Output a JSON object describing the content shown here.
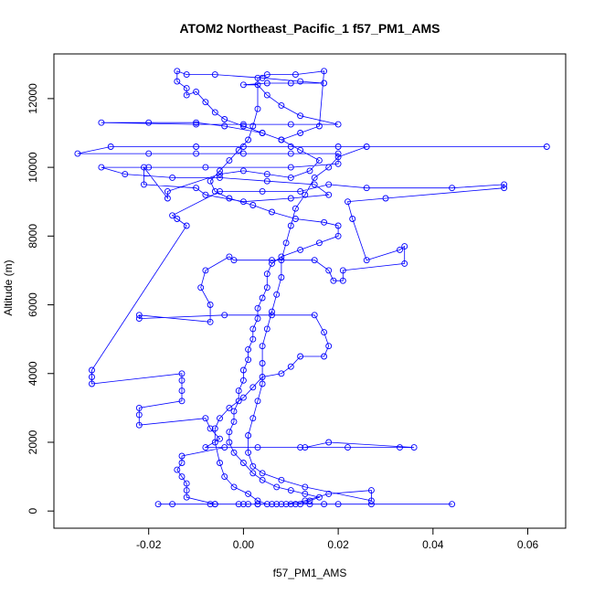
{
  "chart_data": {
    "type": "scatter",
    "title": "ATOM2 Northeast_Pacific_1 f57_PM1_AMS",
    "xlabel": "f57_PM1_AMS",
    "ylabel": "Altitude (m)",
    "xlim": [
      -0.04,
      0.068
    ],
    "ylim": [
      -500,
      13300
    ],
    "xticks": [
      -0.02,
      0.0,
      0.02,
      0.04,
      0.06
    ],
    "xtick_labels": [
      "-0.02",
      "0.00",
      "0.02",
      "0.04",
      "0.06"
    ],
    "yticks": [
      0,
      2000,
      4000,
      6000,
      8000,
      10000,
      12000
    ],
    "ytick_labels": [
      "0",
      "2000",
      "4000",
      "6000",
      "8000",
      "10000",
      "12000"
    ],
    "grid": false,
    "series_color": "#0000ff",
    "marker": "open-circle",
    "connected": true,
    "points": [
      [
        0.012,
        200
      ],
      [
        0.006,
        200
      ],
      [
        -0.001,
        200
      ],
      [
        -0.007,
        200
      ],
      [
        -0.015,
        200
      ],
      [
        -0.018,
        200
      ],
      [
        0.003,
        200
      ],
      [
        0.01,
        200
      ],
      [
        0.017,
        200
      ],
      [
        0.02,
        200
      ],
      [
        0.027,
        200
      ],
      [
        0.044,
        200
      ],
      [
        0.014,
        200
      ],
      [
        0.008,
        200
      ],
      [
        0.001,
        200
      ],
      [
        -0.006,
        200
      ],
      [
        -0.012,
        400
      ],
      [
        -0.012,
        600
      ],
      [
        -0.012,
        800
      ],
      [
        -0.013,
        1000
      ],
      [
        -0.014,
        1200
      ],
      [
        -0.013,
        1400
      ],
      [
        -0.013,
        1600
      ],
      [
        -0.004,
        1850
      ],
      [
        0.012,
        1850
      ],
      [
        0.022,
        1850
      ],
      [
        0.033,
        1850
      ],
      [
        0.036,
        1850
      ],
      [
        0.018,
        2000
      ],
      [
        0.013,
        1850
      ],
      [
        0.003,
        1850
      ],
      [
        -0.008,
        1850
      ],
      [
        -0.005,
        2100
      ],
      [
        -0.007,
        2400
      ],
      [
        -0.008,
        2700
      ],
      [
        -0.022,
        2500
      ],
      [
        -0.022,
        2800
      ],
      [
        -0.022,
        3000
      ],
      [
        -0.013,
        3200
      ],
      [
        -0.013,
        3500
      ],
      [
        -0.013,
        3800
      ],
      [
        -0.013,
        4000
      ],
      [
        -0.032,
        3700
      ],
      [
        -0.032,
        3900
      ],
      [
        -0.032,
        4100
      ],
      [
        -0.012,
        8300
      ],
      [
        -0.014,
        8500
      ],
      [
        -0.015,
        8600
      ],
      [
        -0.005,
        9300
      ],
      [
        0.004,
        9300
      ],
      [
        0.012,
        9300
      ],
      [
        0.018,
        9500
      ],
      [
        0.026,
        9400
      ],
      [
        0.044,
        9400
      ],
      [
        0.055,
        9500
      ],
      [
        0.055,
        9400
      ],
      [
        0.03,
        9100
      ],
      [
        0.022,
        9000
      ],
      [
        0.023,
        8500
      ],
      [
        0.026,
        7300
      ],
      [
        0.033,
        7600
      ],
      [
        0.034,
        7700
      ],
      [
        0.034,
        7200
      ],
      [
        0.021,
        7000
      ],
      [
        0.021,
        6700
      ],
      [
        0.019,
        6700
      ],
      [
        0.018,
        7000
      ],
      [
        0.015,
        7300
      ],
      [
        0.006,
        7300
      ],
      [
        -0.002,
        7300
      ],
      [
        -0.003,
        7400
      ],
      [
        -0.008,
        7000
      ],
      [
        -0.009,
        6500
      ],
      [
        -0.007,
        6000
      ],
      [
        -0.007,
        5500
      ],
      [
        -0.022,
        5700
      ],
      [
        -0.022,
        5600
      ],
      [
        -0.004,
        5700
      ],
      [
        0.006,
        5700
      ],
      [
        0.015,
        5700
      ],
      [
        0.017,
        5200
      ],
      [
        0.018,
        4800
      ],
      [
        0.017,
        4500
      ],
      [
        0.012,
        4500
      ],
      [
        0.01,
        4200
      ],
      [
        0.008,
        4000
      ],
      [
        0.004,
        3900
      ],
      [
        0.002,
        3600
      ],
      [
        0.0,
        3300
      ],
      [
        -0.003,
        3000
      ],
      [
        -0.005,
        2700
      ],
      [
        -0.006,
        2400
      ],
      [
        -0.006,
        2000
      ],
      [
        -0.005,
        1400
      ],
      [
        -0.004,
        1000
      ],
      [
        -0.002,
        700
      ],
      [
        0.001,
        500
      ],
      [
        0.003,
        300
      ],
      [
        0.005,
        200
      ],
      [
        0.009,
        200
      ],
      [
        0.013,
        300
      ],
      [
        0.018,
        500
      ],
      [
        0.027,
        600
      ],
      [
        0.027,
        300
      ],
      [
        0.013,
        700
      ],
      [
        0.008,
        900
      ],
      [
        0.004,
        1100
      ],
      [
        0.002,
        1300
      ],
      [
        0.001,
        1700
      ],
      [
        0.001,
        2200
      ],
      [
        0.002,
        2700
      ],
      [
        0.003,
        3200
      ],
      [
        0.004,
        3700
      ],
      [
        0.004,
        4300
      ],
      [
        0.004,
        4800
      ],
      [
        0.005,
        5300
      ],
      [
        0.006,
        5800
      ],
      [
        0.007,
        6300
      ],
      [
        0.008,
        6800
      ],
      [
        0.008,
        7300
      ],
      [
        0.009,
        7800
      ],
      [
        0.01,
        8300
      ],
      [
        0.011,
        8800
      ],
      [
        0.013,
        9200
      ],
      [
        0.015,
        9700
      ],
      [
        0.018,
        10000
      ],
      [
        0.02,
        10300
      ],
      [
        0.026,
        10600
      ],
      [
        0.064,
        10600
      ],
      [
        0.02,
        10600
      ],
      [
        0.01,
        10600
      ],
      [
        0.0,
        10600
      ],
      [
        -0.01,
        10600
      ],
      [
        -0.028,
        10600
      ],
      [
        -0.035,
        10400
      ],
      [
        -0.02,
        10400
      ],
      [
        -0.01,
        10400
      ],
      [
        0.0,
        10400
      ],
      [
        0.01,
        10400
      ],
      [
        0.02,
        10400
      ],
      [
        0.02,
        10100
      ],
      [
        0.01,
        10000
      ],
      [
        -0.008,
        10000
      ],
      [
        -0.02,
        10000
      ],
      [
        -0.03,
        10000
      ],
      [
        -0.025,
        9800
      ],
      [
        -0.015,
        9700
      ],
      [
        -0.005,
        9700
      ],
      [
        0.005,
        9600
      ],
      [
        0.015,
        9500
      ],
      [
        0.018,
        9200
      ],
      [
        0.01,
        9100
      ],
      [
        0.0,
        9000
      ],
      [
        -0.008,
        9200
      ],
      [
        -0.01,
        9400
      ],
      [
        -0.021,
        9500
      ],
      [
        -0.021,
        10000
      ],
      [
        -0.016,
        9100
      ],
      [
        -0.016,
        9300
      ],
      [
        -0.005,
        9800
      ],
      [
        0.0,
        9900
      ],
      [
        0.005,
        9800
      ],
      [
        0.01,
        9700
      ],
      [
        0.014,
        9900
      ],
      [
        0.016,
        10200
      ],
      [
        0.012,
        10500
      ],
      [
        0.008,
        10800
      ],
      [
        0.004,
        11000
      ],
      [
        -0.004,
        11200
      ],
      [
        -0.01,
        11300
      ],
      [
        -0.02,
        11300
      ],
      [
        -0.03,
        11300
      ],
      [
        -0.01,
        11250
      ],
      [
        0.0,
        11250
      ],
      [
        0.01,
        11250
      ],
      [
        0.02,
        11250
      ],
      [
        0.012,
        11500
      ],
      [
        0.008,
        11800
      ],
      [
        0.005,
        12100
      ],
      [
        0.003,
        12400
      ],
      [
        0.0,
        12400
      ],
      [
        0.005,
        12450
      ],
      [
        0.01,
        12450
      ],
      [
        0.017,
        12450
      ],
      [
        0.012,
        12500
      ],
      [
        0.004,
        12600
      ],
      [
        -0.006,
        12700
      ],
      [
        -0.012,
        12700
      ],
      [
        -0.014,
        12800
      ],
      [
        -0.014,
        12500
      ],
      [
        -0.012,
        12300
      ],
      [
        -0.012,
        12100
      ],
      [
        -0.01,
        12200
      ],
      [
        -0.008,
        11900
      ],
      [
        -0.006,
        11600
      ],
      [
        -0.004,
        11400
      ],
      [
        0.0,
        11200
      ],
      [
        0.004,
        11000
      ],
      [
        0.008,
        10800
      ],
      [
        0.012,
        11000
      ],
      [
        0.016,
        11200
      ],
      [
        0.017,
        12800
      ],
      [
        0.011,
        12700
      ],
      [
        0.005,
        12700
      ],
      [
        0.003,
        12600
      ],
      [
        0.003,
        11700
      ],
      [
        0.002,
        11200
      ],
      [
        0.001,
        10800
      ],
      [
        -0.001,
        10500
      ],
      [
        -0.003,
        10200
      ],
      [
        -0.005,
        9900
      ],
      [
        -0.007,
        9600
      ],
      [
        -0.006,
        9300
      ],
      [
        -0.003,
        9100
      ],
      [
        0.002,
        8900
      ],
      [
        0.006,
        8700
      ],
      [
        0.011,
        8500
      ],
      [
        0.017,
        8400
      ],
      [
        0.02,
        8300
      ],
      [
        0.02,
        8000
      ],
      [
        0.016,
        7800
      ],
      [
        0.012,
        7600
      ],
      [
        0.008,
        7400
      ],
      [
        0.006,
        7200
      ],
      [
        0.005,
        6900
      ],
      [
        0.005,
        6500
      ],
      [
        0.004,
        6200
      ],
      [
        0.003,
        5900
      ],
      [
        0.003,
        5600
      ],
      [
        0.002,
        5300
      ],
      [
        0.002,
        5000
      ],
      [
        0.001,
        4700
      ],
      [
        0.001,
        4400
      ],
      [
        0.0,
        4100
      ],
      [
        0.0,
        3800
      ],
      [
        -0.001,
        3500
      ],
      [
        -0.001,
        3200
      ],
      [
        -0.002,
        2900
      ],
      [
        -0.002,
        2600
      ],
      [
        -0.003,
        2300
      ],
      [
        -0.003,
        2000
      ],
      [
        -0.002,
        1700
      ],
      [
        0.0,
        1400
      ],
      [
        0.002,
        1100
      ],
      [
        0.004,
        900
      ],
      [
        0.007,
        700
      ],
      [
        0.01,
        600
      ],
      [
        0.013,
        500
      ],
      [
        0.016,
        400
      ],
      [
        0.014,
        300
      ],
      [
        0.011,
        200
      ],
      [
        0.007,
        200
      ],
      [
        0.003,
        200
      ],
      [
        0.0,
        200
      ],
      [
        -0.006,
        200
      ]
    ]
  }
}
